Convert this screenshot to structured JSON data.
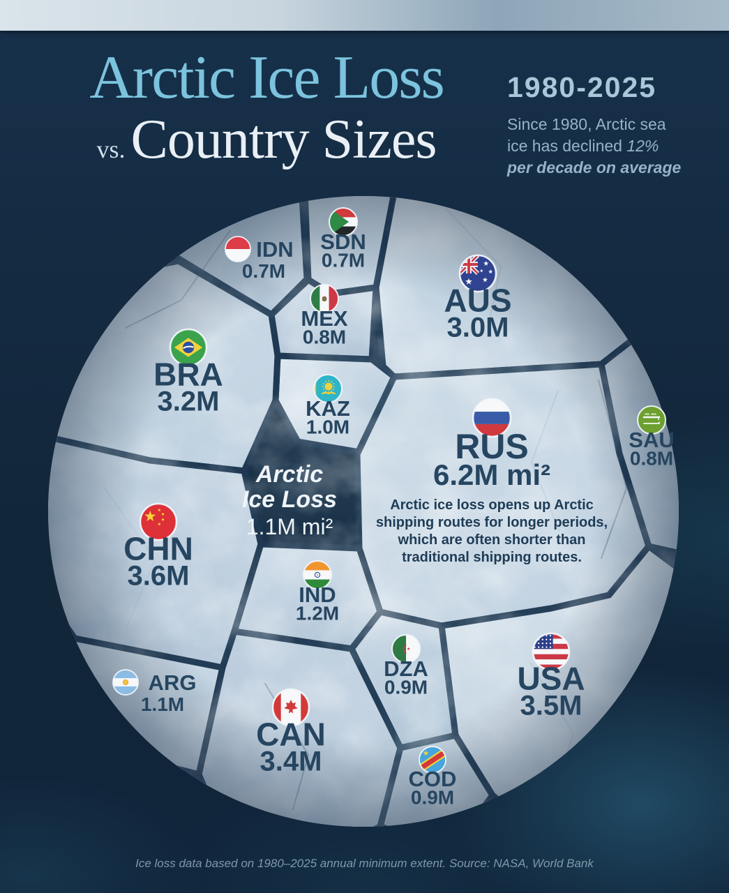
{
  "header": {
    "title_line1": "Arctic Ice Loss",
    "title_vs": "vs.",
    "title_line2": "Country Sizes",
    "period": "1980-2025",
    "subtitle_l1": "Since 1980, Arctic sea",
    "subtitle_l2a": "ice has declined ",
    "subtitle_l2b": "12%",
    "subtitle_l3": "per decade on average"
  },
  "center": {
    "l1": "Arctic",
    "l2": "Ice Loss",
    "value": "1.1M mi²"
  },
  "note": {
    "l1": "Arctic ice loss opens up Arctic",
    "l2": "shipping routes for longer periods,",
    "l3": "which are often shorter than",
    "l4": "traditional shipping routes."
  },
  "footer": {
    "text": "Ice loss data based on 1980–2025 annual minimum extent. Source: NASA, World Bank"
  },
  "chart_data": {
    "type": "circular-voronoi-area-comparison",
    "title": "Arctic Ice Loss vs. Country Sizes",
    "period": "1980-2025",
    "unit": "million square miles",
    "arctic_ice_loss": {
      "label": "Arctic Ice Loss",
      "value": 1.1,
      "value_label": "1.1M mi²"
    },
    "items": [
      {
        "code": "SDN",
        "flag": "sudan-flag",
        "value": 0.7,
        "value_label": "0.7M"
      },
      {
        "code": "IDN",
        "flag": "indonesia-flag",
        "value": 0.7,
        "value_label": "0.7M"
      },
      {
        "code": "AUS",
        "flag": "australia-flag",
        "value": 3.0,
        "value_label": "3.0M"
      },
      {
        "code": "MEX",
        "flag": "mexico-flag",
        "value": 0.8,
        "value_label": "0.8M"
      },
      {
        "code": "BRA",
        "flag": "brazil-flag",
        "value": 3.2,
        "value_label": "3.2M"
      },
      {
        "code": "KAZ",
        "flag": "kazakhstan-flag",
        "value": 1.0,
        "value_label": "1.0M"
      },
      {
        "code": "RUS",
        "flag": "russia-flag",
        "value": 6.2,
        "value_label": "6.2M mi²"
      },
      {
        "code": "SAU",
        "flag": "saudi-arabia-flag",
        "value": 0.8,
        "value_label": "0.8M"
      },
      {
        "code": "CHN",
        "flag": "china-flag",
        "value": 3.6,
        "value_label": "3.6M"
      },
      {
        "code": "IND",
        "flag": "india-flag",
        "value": 1.2,
        "value_label": "1.2M"
      },
      {
        "code": "DZA",
        "flag": "algeria-flag",
        "value": 0.9,
        "value_label": "0.9M"
      },
      {
        "code": "USA",
        "flag": "united-states-flag",
        "value": 3.5,
        "value_label": "3.5M"
      },
      {
        "code": "ARG",
        "flag": "argentina-flag",
        "value": 1.1,
        "value_label": "1.1M"
      },
      {
        "code": "CAN",
        "flag": "canada-flag",
        "value": 3.4,
        "value_label": "3.4M"
      },
      {
        "code": "COD",
        "flag": "dr-congo-flag",
        "value": 0.9,
        "value_label": "0.9M"
      }
    ]
  },
  "colors": {
    "accent_title": "#7cc3dd",
    "label_text": "#264560",
    "background": "#13293c",
    "ice_light": "#d5e1eb",
    "channel": "#1f3952",
    "center_text": "#eef4f9"
  }
}
